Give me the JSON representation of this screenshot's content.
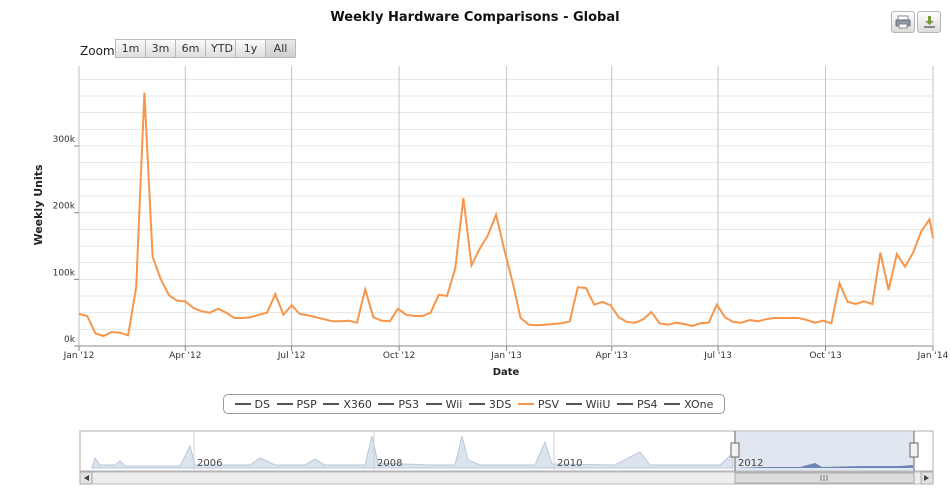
{
  "header": {
    "title": "Weekly Hardware Comparisons - Global"
  },
  "toolbar": {
    "print_icon": "printer-icon",
    "export_icon": "download-icon"
  },
  "zoom": {
    "label": "Zoom",
    "buttons": [
      "1m",
      "3m",
      "6m",
      "YTD",
      "1y",
      "All"
    ]
  },
  "legend": {
    "items": [
      "DS",
      "PSP",
      "X360",
      "PS3",
      "Wii",
      "3DS",
      "PSV",
      "WiiU",
      "PS4",
      "XOne"
    ],
    "active": "PSV",
    "active_color": "#f7964a",
    "inactive_color": "#555555"
  },
  "navigator": {
    "year_labels": [
      "2006",
      "2008",
      "2010",
      "2012"
    ]
  },
  "chart_data": {
    "type": "line",
    "title": "Weekly Hardware Comparisons - Global",
    "xlabel": "Date",
    "ylabel": "Weekly Units",
    "x_ticks": [
      "Jan '12",
      "Apr '12",
      "Jul '12",
      "Oct '12",
      "Jan '13",
      "Apr '13",
      "Jul '13",
      "Oct '13",
      "Jan '14"
    ],
    "y_ticks": [
      "0k",
      "100k",
      "200k",
      "300k"
    ],
    "xlim": [
      "2012-01-01",
      "2014-01-01"
    ],
    "ylim": [
      0,
      420000
    ],
    "grid": true,
    "series": [
      {
        "name": "PSV",
        "color": "#f7964a",
        "x": [
          "2012-01-01",
          "2012-01-08",
          "2012-01-15",
          "2012-01-22",
          "2012-01-29",
          "2012-02-05",
          "2012-02-12",
          "2012-02-19",
          "2012-02-26",
          "2012-03-04",
          "2012-03-11",
          "2012-03-18",
          "2012-03-25",
          "2012-04-01",
          "2012-04-08",
          "2012-04-15",
          "2012-04-22",
          "2012-04-29",
          "2012-05-06",
          "2012-05-13",
          "2012-05-20",
          "2012-05-27",
          "2012-06-03",
          "2012-06-10",
          "2012-06-17",
          "2012-06-24",
          "2012-07-01",
          "2012-07-08",
          "2012-07-15",
          "2012-07-22",
          "2012-07-29",
          "2012-08-05",
          "2012-08-12",
          "2012-08-19",
          "2012-08-26",
          "2012-09-02",
          "2012-09-09",
          "2012-09-16",
          "2012-09-23",
          "2012-09-30",
          "2012-10-07",
          "2012-10-14",
          "2012-10-21",
          "2012-10-28",
          "2012-11-04",
          "2012-11-11",
          "2012-11-18",
          "2012-11-25",
          "2012-12-02",
          "2012-12-09",
          "2012-12-16",
          "2012-12-23",
          "2012-12-30",
          "2013-01-06",
          "2013-01-13",
          "2013-01-20",
          "2013-01-27",
          "2013-02-03",
          "2013-02-10",
          "2013-02-17",
          "2013-02-24",
          "2013-03-03",
          "2013-03-10",
          "2013-03-17",
          "2013-03-24",
          "2013-03-31",
          "2013-04-07",
          "2013-04-14",
          "2013-04-21",
          "2013-04-28",
          "2013-05-05",
          "2013-05-12",
          "2013-05-19",
          "2013-05-26",
          "2013-06-02",
          "2013-06-09",
          "2013-06-16",
          "2013-06-23",
          "2013-06-30",
          "2013-07-07",
          "2013-07-14",
          "2013-07-21",
          "2013-07-28",
          "2013-08-04",
          "2013-08-11",
          "2013-08-18",
          "2013-08-25",
          "2013-09-01",
          "2013-09-08",
          "2013-09-15",
          "2013-09-22",
          "2013-09-29",
          "2013-10-06",
          "2013-10-13",
          "2013-10-20",
          "2013-10-27",
          "2013-11-03",
          "2013-11-10",
          "2013-11-17",
          "2013-11-24",
          "2013-12-01",
          "2013-12-08",
          "2013-12-15",
          "2013-12-22",
          "2013-12-29",
          "2014-01-01"
        ],
        "values": [
          48000,
          45000,
          19000,
          15000,
          21000,
          20000,
          16000,
          88000,
          380000,
          134000,
          100000,
          76000,
          68000,
          67000,
          57000,
          52000,
          50000,
          56000,
          50000,
          42000,
          42000,
          43000,
          47000,
          50000,
          78000,
          47000,
          61000,
          48000,
          46000,
          43000,
          40000,
          37000,
          37000,
          38000,
          35000,
          85000,
          43000,
          38000,
          37000,
          56000,
          47000,
          45000,
          45000,
          50000,
          77000,
          75000,
          116000,
          222000,
          121000,
          146000,
          166000,
          197000,
          145000,
          97000,
          42000,
          32000,
          31000,
          32000,
          33000,
          34000,
          37000,
          88000,
          87000,
          62000,
          66000,
          61000,
          43000,
          36000,
          35000,
          40000,
          51000,
          34000,
          32000,
          35000,
          33000,
          30000,
          34000,
          35000,
          62000,
          43000,
          36000,
          35000,
          39000,
          37000,
          40000,
          42000,
          42000,
          42000,
          42000,
          39000,
          35000,
          38000,
          34000,
          94000,
          66000,
          63000,
          67000,
          63000,
          140000,
          84000,
          138000,
          119000,
          140000,
          172000,
          190000,
          162000
        ]
      }
    ]
  }
}
